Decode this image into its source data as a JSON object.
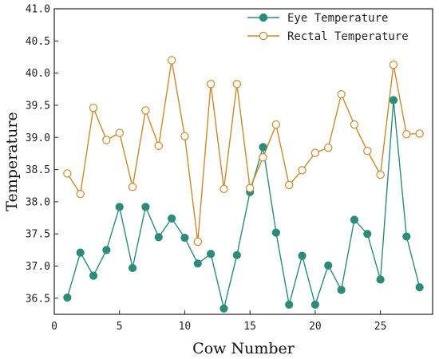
{
  "chart_data": {
    "type": "line",
    "title": "",
    "xlabel": "Cow Number",
    "ylabel": "Temperature",
    "xlim": [
      0,
      29
    ],
    "ylim": [
      36.25,
      41.0
    ],
    "xticks": [
      0,
      5,
      10,
      15,
      20,
      25
    ],
    "xtick_labels": [
      "0",
      "5",
      "10",
      "15",
      "20",
      "25"
    ],
    "yticks": [
      36.5,
      37.0,
      37.5,
      38.0,
      38.5,
      39.0,
      39.5,
      40.0,
      40.5,
      41.0
    ],
    "ytick_labels": [
      "36.5",
      "37.0",
      "37.5",
      "38.0",
      "38.5",
      "39.0",
      "39.5",
      "40.0",
      "40.5",
      "41.0"
    ],
    "grid": false,
    "legend": "top-right",
    "x": [
      1,
      2,
      3,
      4,
      5,
      6,
      7,
      8,
      9,
      10,
      11,
      12,
      13,
      14,
      15,
      16,
      17,
      18,
      19,
      20,
      21,
      22,
      23,
      24,
      25,
      26,
      27,
      28
    ],
    "series": [
      {
        "name": "Eye Temperature",
        "color": "#2a8c79",
        "marker": "filled-circle",
        "values": [
          36.51,
          37.21,
          36.85,
          37.25,
          37.92,
          36.97,
          37.92,
          37.45,
          37.74,
          37.44,
          37.04,
          37.19,
          36.34,
          37.17,
          38.15,
          38.85,
          37.52,
          36.4,
          37.16,
          36.4,
          37.01,
          36.63,
          37.72,
          37.5,
          36.79,
          39.58,
          37.46,
          36.67
        ]
      },
      {
        "name": "Rectal Temperature",
        "color": "#c98a2b",
        "marker": "open-circle",
        "values": [
          38.44,
          38.12,
          39.46,
          38.96,
          39.07,
          38.23,
          39.42,
          38.87,
          40.2,
          39.02,
          37.38,
          39.83,
          38.2,
          39.83,
          38.21,
          38.69,
          39.2,
          38.26,
          38.49,
          38.76,
          38.84,
          39.67,
          39.2,
          38.79,
          38.42,
          40.13,
          39.05,
          39.06
        ]
      }
    ]
  }
}
